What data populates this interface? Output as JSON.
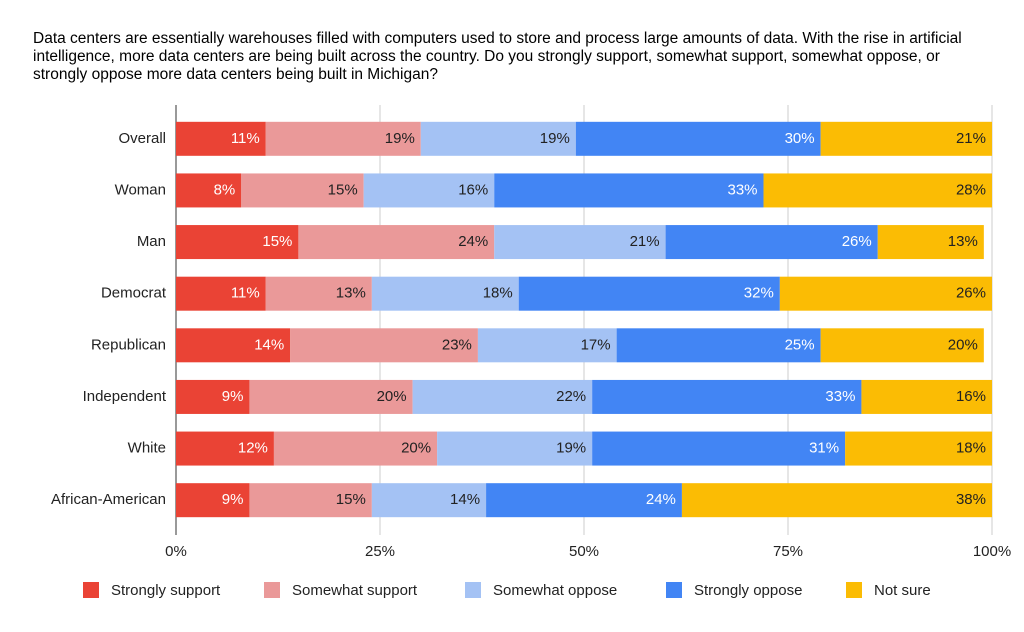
{
  "chart_data": {
    "type": "stacked-bar-horizontal",
    "title": "Data centers are essentially warehouses filled with computers used to store and process large amounts of data. With the rise in artificial intelligence, more data centers are being built across the country. Do you strongly support, somewhat support, somewhat oppose, or strongly oppose more data centers being built in Michigan?",
    "categories": [
      "Overall",
      "Woman",
      "Man",
      "Democrat",
      "Republican",
      "Independent",
      "White",
      "African-American"
    ],
    "series": [
      {
        "name": "Strongly support",
        "color": "#ea4335",
        "values": [
          11,
          8,
          15,
          11,
          14,
          9,
          12,
          9
        ],
        "value_labels": [
          "11%",
          "8%",
          "15%",
          "11%",
          "14%",
          "9%",
          "12%",
          "9%"
        ]
      },
      {
        "name": "Somewhat support",
        "color": "#ea9999",
        "values": [
          19,
          15,
          24,
          13,
          23,
          20,
          20,
          15
        ],
        "value_labels": [
          "19%",
          "15%",
          "24%",
          "13%",
          "23%",
          "20%",
          "20%",
          "15%"
        ]
      },
      {
        "name": "Somewhat oppose",
        "color": "#a4c2f4",
        "values": [
          19,
          16,
          21,
          18,
          17,
          22,
          19,
          14
        ],
        "value_labels": [
          "19%",
          "16%",
          "21%",
          "18%",
          "17%",
          "22%",
          "19%",
          "14%"
        ]
      },
      {
        "name": "Strongly oppose",
        "color": "#4285f4",
        "values": [
          30,
          33,
          26,
          32,
          25,
          33,
          31,
          24
        ],
        "value_labels": [
          "30%",
          "33%",
          "26%",
          "32%",
          "25%",
          "33%",
          "31%",
          "24%"
        ]
      },
      {
        "name": "Not sure",
        "color": "#fbbc04",
        "values": [
          21,
          28,
          13,
          26,
          20,
          16,
          18,
          38
        ],
        "value_labels": [
          "21%",
          "28%",
          "13%",
          "26%",
          "20%",
          "16%",
          "18%",
          "38%"
        ]
      }
    ],
    "xlim": [
      0,
      100
    ],
    "xticks": [
      {
        "value": 0,
        "label": "0%"
      },
      {
        "value": 25,
        "label": "25%"
      },
      {
        "value": 50,
        "label": "50%"
      },
      {
        "value": 75,
        "label": "75%"
      },
      {
        "value": 100,
        "label": "100%"
      }
    ],
    "grid": true,
    "legend": "bottom"
  }
}
